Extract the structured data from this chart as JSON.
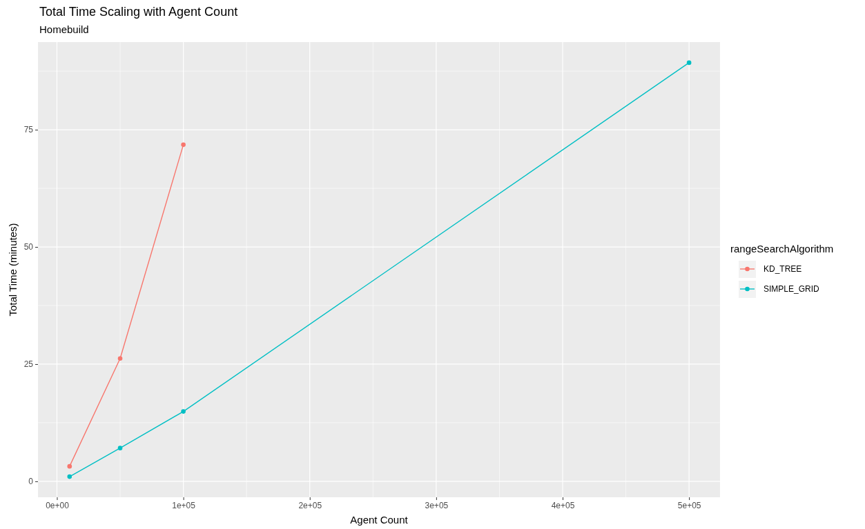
{
  "chart_data": {
    "type": "line",
    "title": "Total Time Scaling with Agent Count",
    "subtitle": "Homebuild",
    "xlabel": "Agent Count",
    "ylabel": "Total Time (minutes)",
    "legend_title": "rangeSearchAlgorithm",
    "x": [
      10000,
      50000,
      100000
    ],
    "series": [
      {
        "name": "KD_TREE",
        "color": "#f8766d",
        "values": [
          3.2,
          26.2,
          71.8
        ]
      },
      {
        "name": "SIMPLE_GRID",
        "color": "#00bfc4",
        "x": [
          10000,
          50000,
          100000,
          500000
        ],
        "values": [
          1.0,
          7.1,
          14.9,
          89.3
        ]
      }
    ],
    "xlim": [
      -15000,
      524500
    ],
    "ylim": [
      -3.4,
      93.7
    ],
    "xticks": [
      {
        "value": 0,
        "label": "0e+00"
      },
      {
        "value": 100000,
        "label": "1e+05"
      },
      {
        "value": 200000,
        "label": "2e+05"
      },
      {
        "value": 300000,
        "label": "3e+05"
      },
      {
        "value": 400000,
        "label": "4e+05"
      },
      {
        "value": 500000,
        "label": "5e+05"
      }
    ],
    "yticks": [
      0,
      25,
      50,
      75
    ],
    "grid": true,
    "legend": "right",
    "marker": "circle",
    "line_style": "solid"
  }
}
